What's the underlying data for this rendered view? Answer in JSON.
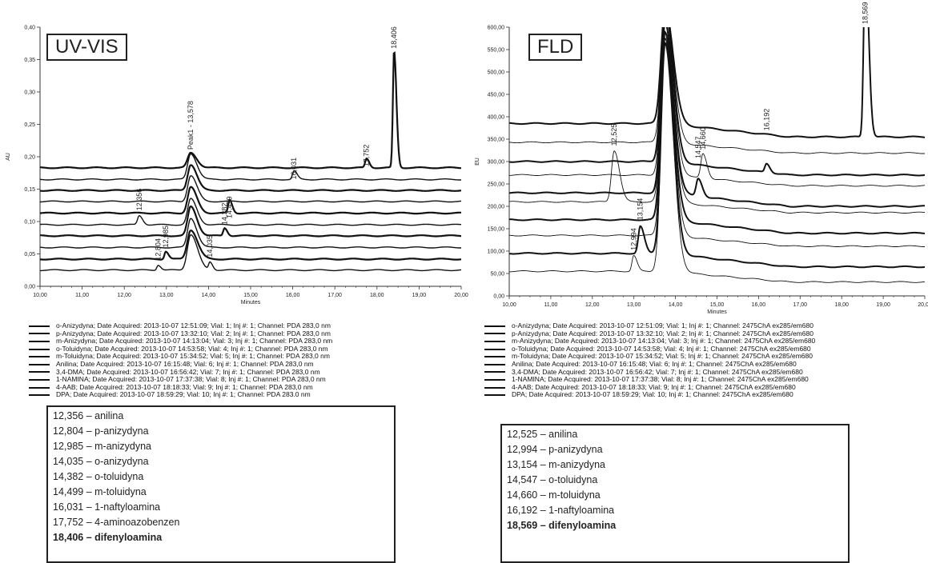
{
  "chart_data": [
    {
      "type": "line",
      "id": "uv",
      "title": "UV-VIS",
      "xlabel": "Minutes",
      "ylabel": "AU",
      "xlim": [
        10.0,
        20.0
      ],
      "ylim": [
        0.0,
        0.4
      ],
      "x_ticks": [
        "10,00",
        "11,00",
        "12,00",
        "13,00",
        "14,00",
        "15,00",
        "16,00",
        "17,00",
        "18,00",
        "19,00",
        "20,00"
      ],
      "y_ticks": [
        "0,00",
        "0,05",
        "0,10",
        "0,15",
        "0,20",
        "0,25",
        "0,30",
        "0,35",
        "0,40"
      ],
      "grid": false,
      "peak_labels": [
        {
          "text": "12,356",
          "x": 12.356,
          "y": 0.112
        },
        {
          "text": "12,804",
          "x": 12.804,
          "y": 0.035
        },
        {
          "text": "12,985",
          "x": 12.985,
          "y": 0.055
        },
        {
          "text": "Peak1 - 13,578",
          "x": 13.578,
          "y": 0.206
        },
        {
          "text": "14,035",
          "x": 14.035,
          "y": 0.04
        },
        {
          "text": "14,382",
          "x": 14.382,
          "y": 0.09
        },
        {
          "text": "14,499",
          "x": 14.499,
          "y": 0.1
        },
        {
          "text": "16,031",
          "x": 16.031,
          "y": 0.16
        },
        {
          "text": "17,752",
          "x": 17.752,
          "y": 0.18
        },
        {
          "text": "18,406",
          "x": 18.406,
          "y": 0.362
        }
      ],
      "series": [
        {
          "name": "o-Anizydyna",
          "baseline": 0.183,
          "peaks": [
            [
              13.578,
              0.023,
              0.09
            ],
            [
              17.752,
              0.014,
              0.04
            ],
            [
              18.406,
              0.18,
              0.035
            ]
          ]
        },
        {
          "name": "p-Anizydyna",
          "baseline": 0.165,
          "peaks": [
            [
              13.578,
              0.04,
              0.09
            ],
            [
              16.031,
              0.013,
              0.045
            ]
          ]
        },
        {
          "name": "m-Anizydyna",
          "baseline": 0.148,
          "peaks": [
            [
              13.578,
              0.04,
              0.09
            ]
          ]
        },
        {
          "name": "o-Toluidyna",
          "baseline": 0.131,
          "peaks": [
            [
              13.578,
              0.04,
              0.09
            ]
          ]
        },
        {
          "name": "m-Toluidyna",
          "baseline": 0.113,
          "peaks": [
            [
              13.578,
              0.04,
              0.09
            ],
            [
              14.499,
              0.02,
              0.04
            ]
          ]
        },
        {
          "name": "Anilina",
          "baseline": 0.095,
          "peaks": [
            [
              12.356,
              0.014,
              0.05
            ],
            [
              13.578,
              0.04,
              0.09
            ]
          ]
        },
        {
          "name": "3,4-DMA",
          "baseline": 0.078,
          "peaks": [
            [
              13.578,
              0.045,
              0.09
            ],
            [
              14.382,
              0.012,
              0.04
            ]
          ]
        },
        {
          "name": "1-NAMINA",
          "baseline": 0.06,
          "peaks": [
            [
              13.578,
              0.045,
              0.09
            ]
          ]
        },
        {
          "name": "4-AAB",
          "baseline": 0.042,
          "peaks": [
            [
              12.985,
              0.012,
              0.04
            ],
            [
              13.578,
              0.045,
              0.1
            ]
          ]
        },
        {
          "name": "DPA",
          "baseline": 0.025,
          "peaks": [
            [
              12.804,
              0.008,
              0.04
            ],
            [
              13.578,
              0.055,
              0.1
            ],
            [
              14.035,
              0.012,
              0.04
            ]
          ]
        }
      ]
    },
    {
      "type": "line",
      "id": "fld",
      "title": "FLD",
      "xlabel": "Minutes",
      "ylabel": "EU",
      "xlim": [
        10.0,
        20.0
      ],
      "ylim": [
        0.0,
        600.0
      ],
      "x_ticks": [
        "10,00",
        "11,00",
        "12,00",
        "13,00",
        "14,00",
        "15,00",
        "16,00",
        "17,00",
        "18,00",
        "19,00",
        "20,00"
      ],
      "y_ticks": [
        "0,00",
        "50,00",
        "100,00",
        "150,00",
        "200,00",
        "250,00",
        "300,00",
        "350,00",
        "400,00",
        "450,00",
        "500,00",
        "550,00",
        "600,00"
      ],
      "grid": false,
      "peak_labels": [
        {
          "text": "12,525",
          "x": 12.525,
          "y": 328
        },
        {
          "text": "12,994",
          "x": 12.994,
          "y": 95
        },
        {
          "text": "13,154",
          "x": 13.154,
          "y": 162
        },
        {
          "text": "14,547",
          "x": 14.547,
          "y": 300
        },
        {
          "text": "14,660",
          "x": 14.66,
          "y": 320
        },
        {
          "text": "16,192",
          "x": 16.192,
          "y": 362
        },
        {
          "text": "18,569",
          "x": 18.569,
          "y": 600
        }
      ],
      "series": [
        {
          "name": "o-Anizydyna",
          "baseline": 385,
          "peaks": [
            [
              13.75,
              260,
              0.12
            ],
            [
              18.569,
              400,
              0.05
            ]
          ]
        },
        {
          "name": "p-Anizydyna",
          "baseline": 343,
          "peaks": [
            [
              13.75,
              300,
              0.12
            ]
          ]
        },
        {
          "name": "m-Anizydyna",
          "baseline": 300,
          "peaks": [
            [
              13.75,
              340,
              0.12
            ],
            [
              16.192,
              20,
              0.05
            ]
          ]
        },
        {
          "name": "o-Toluidyna",
          "baseline": 270,
          "peaks": [
            [
              13.75,
              360,
              0.12
            ],
            [
              14.66,
              55,
              0.06
            ]
          ]
        },
        {
          "name": "m-Toluidyna",
          "baseline": 230,
          "peaks": [
            [
              13.75,
              380,
              0.12
            ],
            [
              14.547,
              40,
              0.06
            ]
          ]
        },
        {
          "name": "Anilina",
          "baseline": 210,
          "peaks": [
            [
              12.525,
              115,
              0.08
            ],
            [
              13.75,
              400,
              0.12
            ]
          ]
        },
        {
          "name": "3,4-DMA",
          "baseline": 170,
          "peaks": [
            [
              13.75,
              420,
              0.12
            ]
          ]
        },
        {
          "name": "1-NAMINA",
          "baseline": 135,
          "peaks": [
            [
              13.75,
              440,
              0.12
            ]
          ]
        },
        {
          "name": "4-AAB",
          "baseline": 95,
          "peaks": [
            [
              13.154,
              60,
              0.06
            ],
            [
              13.75,
              470,
              0.12
            ]
          ]
        },
        {
          "name": "DPA",
          "baseline": 55,
          "peaks": [
            [
              12.994,
              35,
              0.05
            ],
            [
              13.75,
              520,
              0.12
            ]
          ]
        }
      ]
    }
  ],
  "uv": {
    "badge": "UV-VIS",
    "legend": [
      "o-Anizydyna;   Date Acquired: 2013-10-07 12:51:09;   Vial: 1;   Inj #: 1;   Channel: PDA 283,0 nm",
      "p-Anizydyna;   Date Acquired: 2013-10-07 13:32:10;   Vial: 2;   Inj #: 1;   Channel: PDA 283,0 nm",
      "m-Anizydyna;   Date Acquired: 2013-10-07 14:13:04;   Vial: 3;   Inj #: 1;   Channel: PDA 283,0 nm",
      "o-Toluidyna;   Date Acquired: 2013-10-07 14:53:58;   Vial: 4;   Inj #: 1;   Channel: PDA 283,0 nm",
      "m-Toluidyna;   Date Acquired: 2013-10-07 15:34:52;   Vial: 5;   Inj #: 1;   Channel: PDA 283,0 nm",
      "Anilina;   Date Acquired: 2013-10-07 16:15:48;   Vial: 6;   Inj #: 1;   Channel: PDA 283,0 nm",
      "3,4-DMA;   Date Acquired: 2013-10-07 16:56:42;   Vial: 7;   Inj #: 1;   Channel: PDA 283,0 nm",
      "1-NAMINA;   Date Acquired: 2013-10-07 17:37:38;   Vial: 8;   Inj #: 1;   Channel: PDA 283,0 nm",
      "4-AAB;   Date Acquired: 2013-10-07 18:18:33;   Vial: 9;   Inj #: 1;   Channel: PDA 283,0 nm",
      "DPA;   Date Acquired: 2013-10-07 18:59:29;   Vial: 10;   Inj #: 1;   Channel: PDA 283.0 nm"
    ],
    "peaks": [
      "12,356 – anilina",
      "12,804 – p-anizydyna",
      "12,985 – m-anizydyna",
      "14,035 – o-anizydyna",
      "14,382 – o-toluidyna",
      "14,499 – m-toluidyna",
      "16,031 – 1-naftyloamina",
      "17,752 – 4-aminoazobenzen",
      "18,406 – difenyloamina"
    ]
  },
  "fld": {
    "badge": "FLD",
    "legend": [
      "o-Anizydyna;   Date Acquired: 2013-10-07 12:51:09;   Vial: 1;   Inj #: 1;   Channel: 2475ChA ex285/em680",
      "p-Anizydyna;   Date Acquired: 2013-10-07 13:32:10;   Vial: 2;   Inj #: 1;   Channel: 2475ChA ex285/em680",
      "m-Anizydyna;   Date Acquired: 2013-10-07 14:13:04;   Vial: 3;   Inj #: 1;   Channel: 2475ChA ex285/em680",
      "o-Toluidyna;   Date Acquired: 2013-10-07 14:53:58;   Vial: 4;   Inj #: 1;   Channel: 2475ChA ex285/em680",
      "m-Toluidyna;   Date Acquired: 2013-10-07 15:34:52;   Vial: 5;   Inj #: 1;   Channel: 2475ChA ex285/em680",
      "Anilina;   Date Acquired: 2013-10-07 16:15:48;   Vial: 6;   Inj #: 1;   Channel: 2475ChA ex285/em680",
      "3,4-DMA;   Date Acquired: 2013-10-07 16:56:42;   Vial: 7;   Inj #: 1;   Channel: 2475ChA ex285/em680",
      "1-NAMINA;   Date Acquired: 2013-10-07 17:37:38;   Vial: 8;   Inj #: 1;   Channel: 2475ChA ex285/em680",
      "4-AAB;   Date Acquired: 2013-10-07 18:18:33;   Vial: 9;   Inj #: 1;   Channel: 2475ChA ex285/em680",
      "DPA;   Date Acquired: 2013-10-07 18:59:29;   Vial: 10;   Inj #: 1;   Channel: 2475ChA ex285/em680"
    ],
    "peaks": [
      "12,525 – anilina",
      "12,994 – p-anizydyna",
      "13,154 – m-anizydyna",
      "14,547 – o-toluidyna",
      "14,660 – m-toluidyna",
      "16,192 – 1-naftyloamina",
      "18,569 – difenyloamina"
    ]
  }
}
